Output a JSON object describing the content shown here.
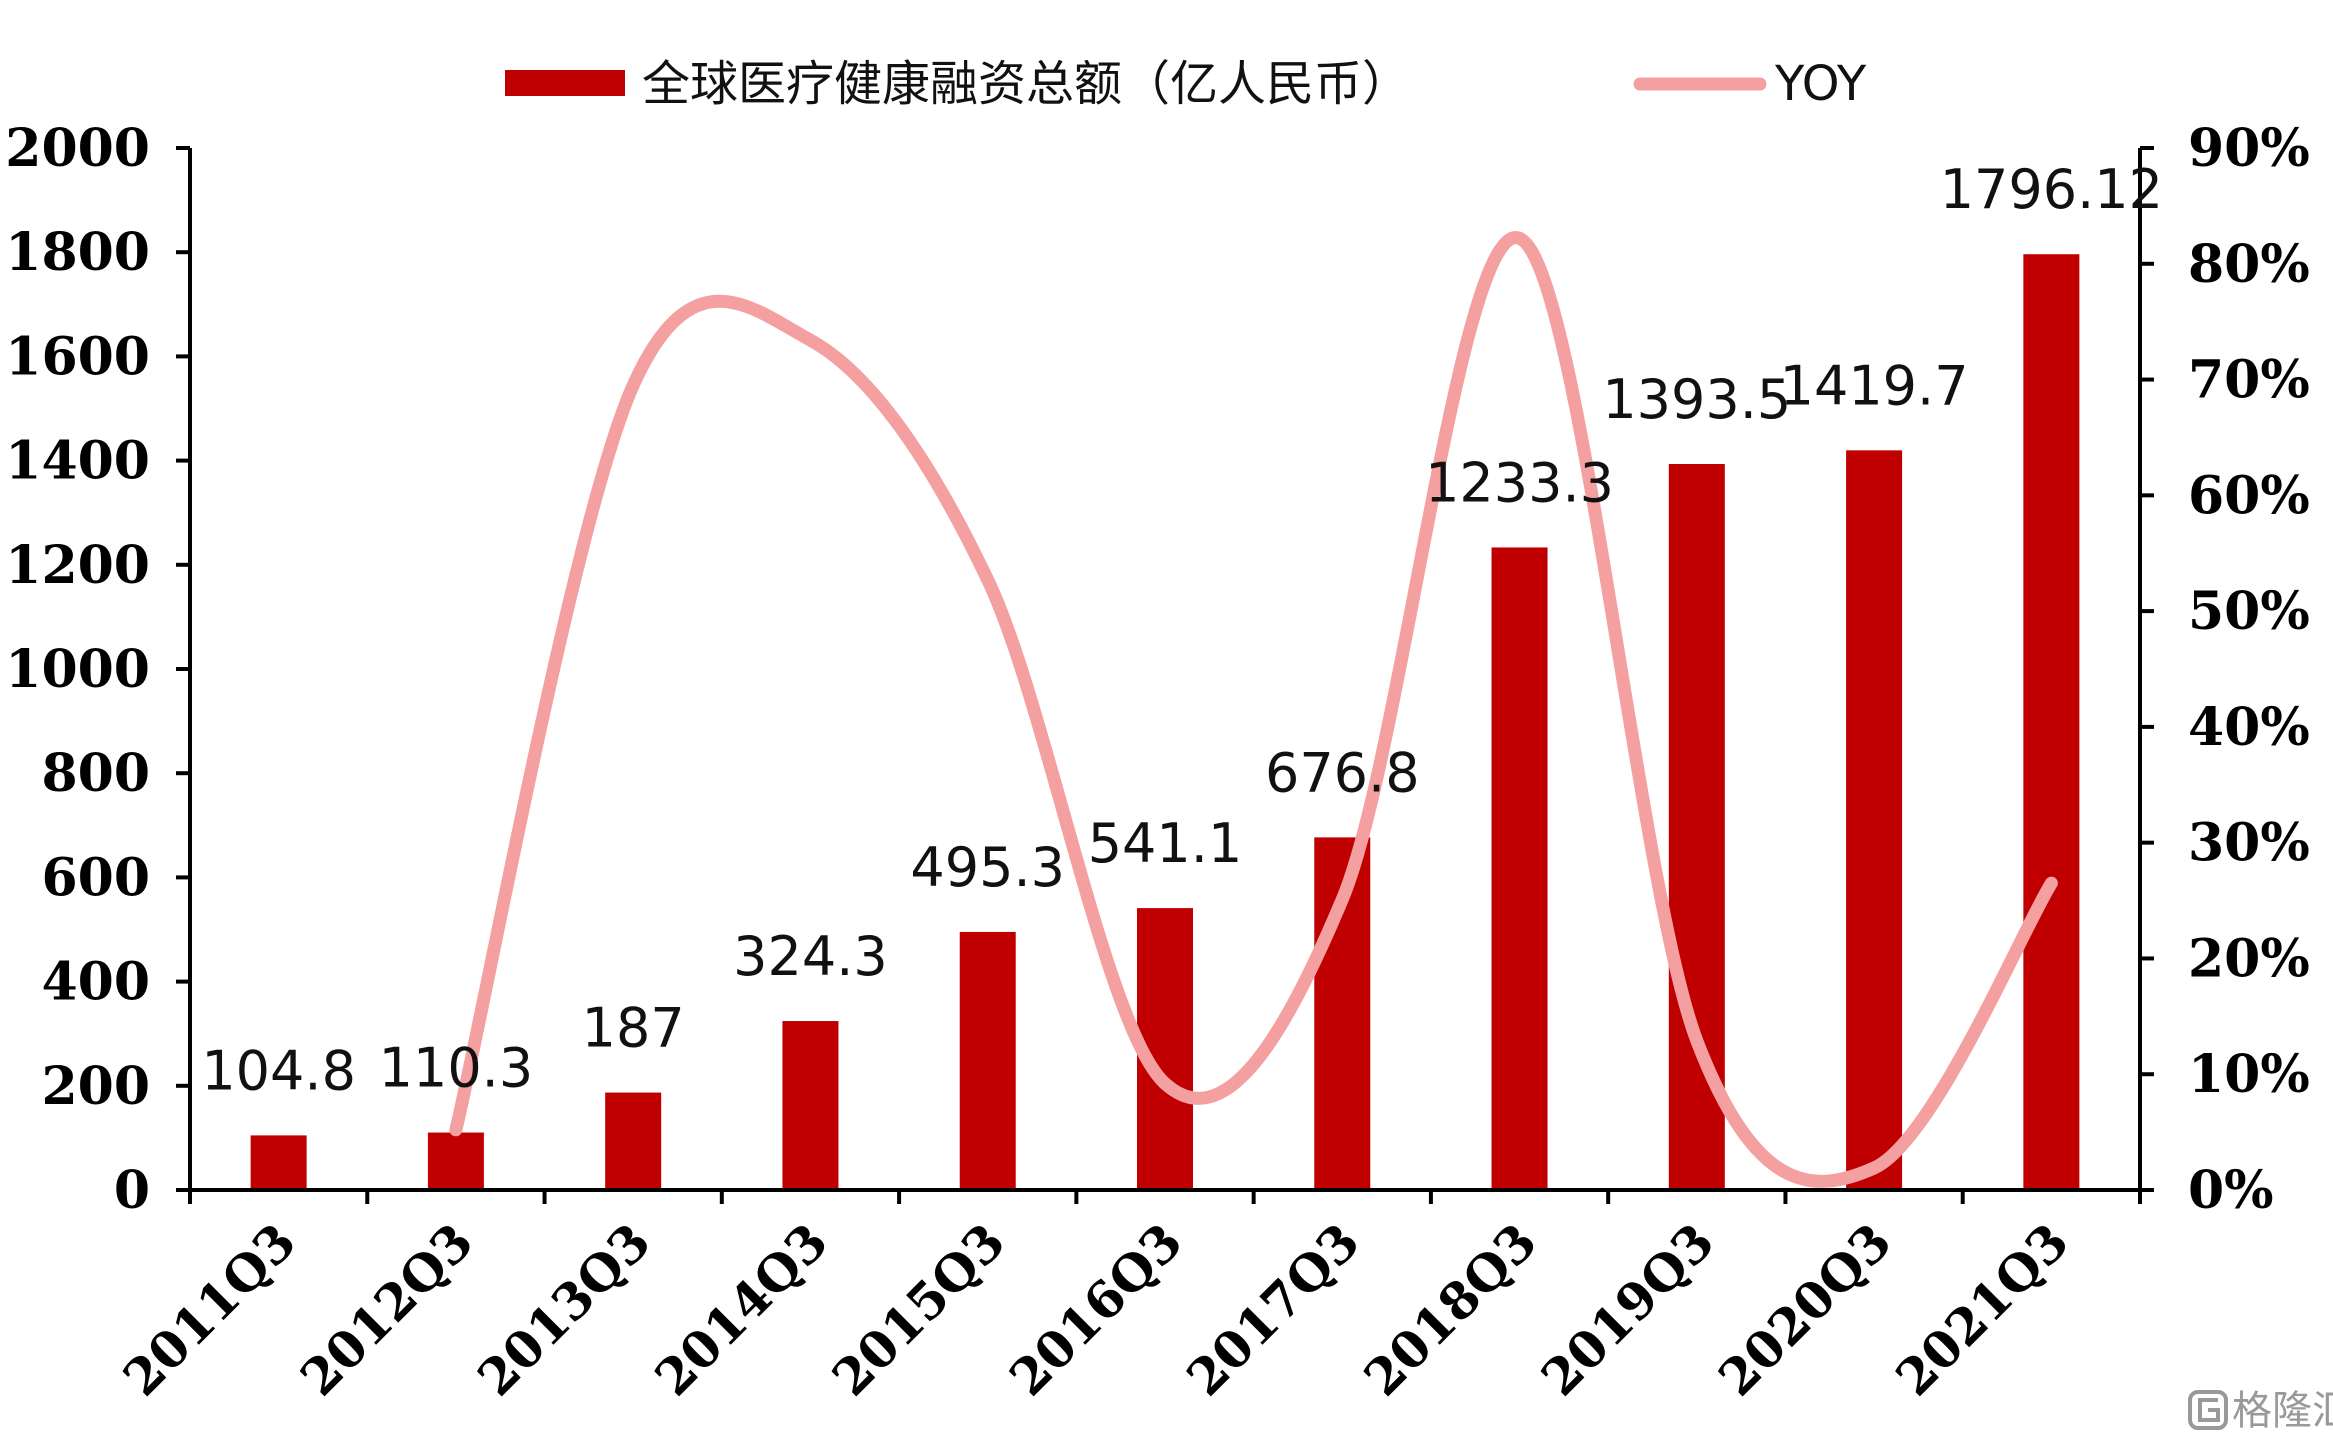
{
  "chart_data": {
    "type": "bar",
    "categories": [
      "2011Q3",
      "2012Q3",
      "2013Q3",
      "2014Q3",
      "2015Q3",
      "2016Q3",
      "2017Q3",
      "2018Q3",
      "2019Q3",
      "2020Q3",
      "2021Q3"
    ],
    "series": [
      {
        "name": "全球医疗健康融资总额（亿人民币）",
        "type": "bar",
        "axis": "left",
        "color": "#C00000",
        "values": [
          104.8,
          110.3,
          187,
          324.3,
          495.3,
          541.1,
          676.8,
          1233.3,
          1393.5,
          1419.7,
          1796.12
        ],
        "data_labels": [
          "104.8",
          "110.3",
          "187",
          "324.3",
          "495.3",
          "541.1",
          "676.8",
          "1233.3",
          "1393.5",
          "1419.7",
          "1796.12"
        ]
      },
      {
        "name": "YOY",
        "type": "line",
        "axis": "right",
        "color": "#F4A0A0",
        "x": [
          "2012Q3",
          "2013Q3",
          "2014Q3",
          "2015Q3",
          "2016Q3",
          "2017Q3",
          "2018Q3",
          "2019Q3",
          "2020Q3",
          "2021Q3"
        ],
        "values": [
          0.052,
          0.695,
          0.734,
          0.527,
          0.092,
          0.251,
          0.822,
          0.129,
          0.019,
          0.265
        ]
      }
    ],
    "y_left": {
      "ylim": [
        0,
        2000
      ],
      "ticks": [
        "0",
        "200",
        "400",
        "600",
        "800",
        "1000",
        "1200",
        "1400",
        "1600",
        "1800",
        "2000"
      ]
    },
    "y_right": {
      "ylim": [
        0,
        0.9
      ],
      "ticks": [
        "0%",
        "10%",
        "20%",
        "30%",
        "40%",
        "50%",
        "60%",
        "70%",
        "80%",
        "90%"
      ]
    },
    "title": "",
    "xlabel": "",
    "ylabel": "",
    "legend": {
      "placement": "top-center"
    },
    "grid": false
  },
  "watermark": {
    "text": "格隆汇",
    "icon": "gelonghui-logo-icon"
  }
}
